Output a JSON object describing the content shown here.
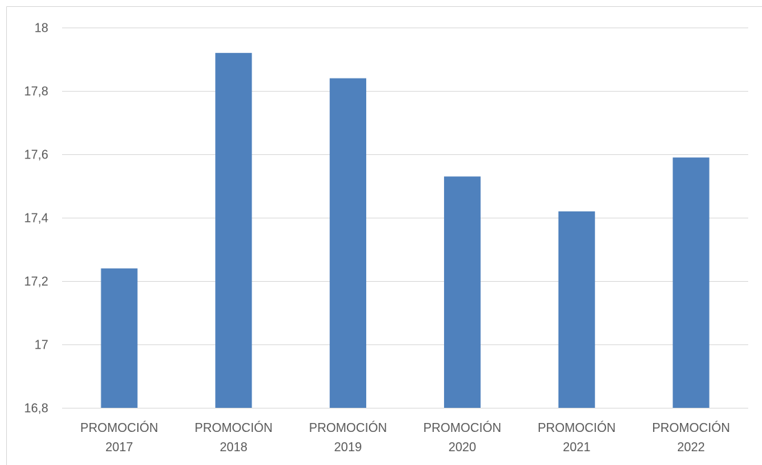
{
  "chart_data": {
    "type": "bar",
    "categories": [
      [
        "PROMOCIÓN",
        "2017"
      ],
      [
        "PROMOCIÓN",
        "2018"
      ],
      [
        "PROMOCIÓN",
        "2019"
      ],
      [
        "PROMOCIÓN",
        "2020"
      ],
      [
        "PROMOCIÓN",
        "2021"
      ],
      [
        "PROMOCIÓN",
        "2022"
      ]
    ],
    "values": [
      17.24,
      17.92,
      17.84,
      17.53,
      17.42,
      17.59
    ],
    "title": "",
    "xlabel": "",
    "ylabel": "",
    "ylim": [
      16.8,
      18
    ],
    "y_ticks": [
      "16,8",
      "17",
      "17,2",
      "17,4",
      "17,6",
      "17,8",
      "18"
    ],
    "grid": true,
    "legend": "none",
    "colors": {
      "bar": "#4f81bd",
      "grid": "#d9d9d9",
      "border": "#d9d9d9",
      "text": "#595959"
    }
  }
}
